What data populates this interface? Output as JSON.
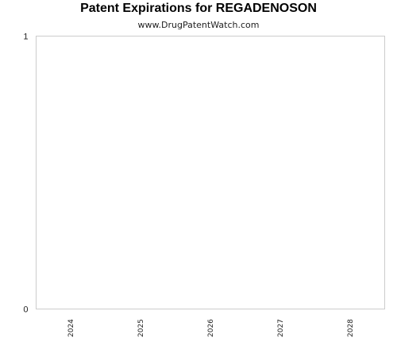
{
  "chart_data": {
    "type": "bar",
    "title": "Patent Expirations for REGADENOSON",
    "subtitle": "www.DrugPatentWatch.com",
    "categories": [
      "2024",
      "2025",
      "2026",
      "2027",
      "2028"
    ],
    "values": [
      0,
      0,
      0,
      0,
      0
    ],
    "xlabel": "",
    "ylabel": "",
    "ylim": [
      0,
      1
    ],
    "yticks": [
      "0",
      "1"
    ],
    "grid": false,
    "legend": "none",
    "colors": {
      "plot_border": "#cccccc",
      "text": "#222222"
    }
  }
}
